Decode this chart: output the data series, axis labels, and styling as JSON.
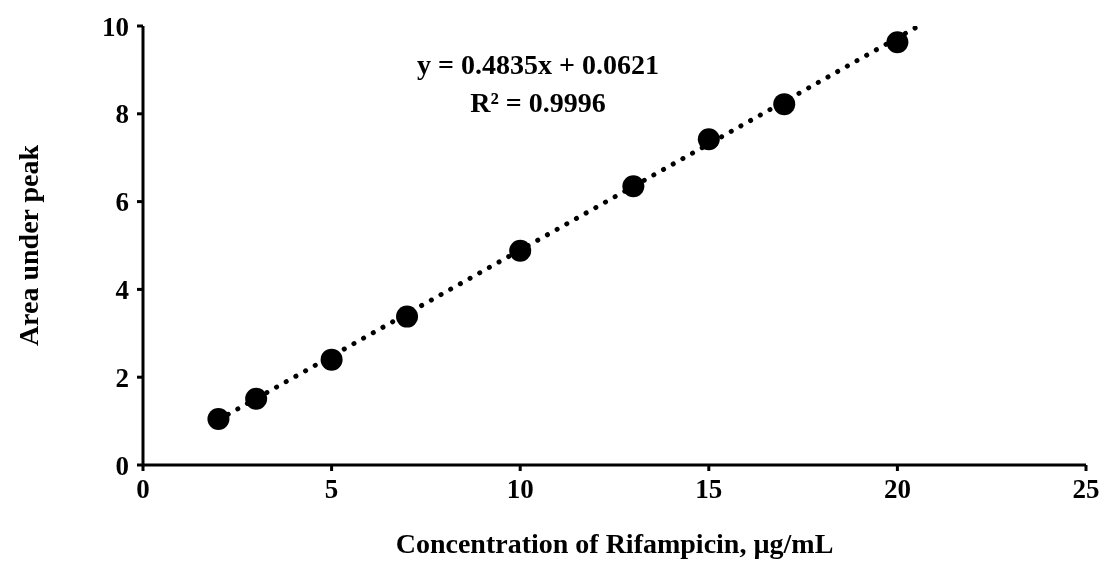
{
  "chart_data": {
    "type": "scatter",
    "xlabel": "Concentration of Rifampicin, µg/mL",
    "ylabel": "Area under peak",
    "annotations": [
      "y = 0.4835x + 0.0621",
      "R² = 0.9996"
    ],
    "xlim": [
      0,
      25
    ],
    "xticks": [
      0,
      5,
      10,
      15,
      20,
      25
    ],
    "ylim": [
      0,
      10
    ],
    "yticks": [
      0,
      2,
      4,
      6,
      8,
      10
    ],
    "grid": false,
    "legend": false,
    "marker": "circle",
    "series": [
      {
        "color": "#000000",
        "x": [
          2,
          3,
          5,
          7,
          10,
          13,
          15,
          17,
          20
        ],
        "values": [
          1.05,
          1.51,
          2.4,
          3.38,
          4.88,
          6.35,
          7.42,
          8.22,
          9.63
        ]
      },
      {
        "type": "line",
        "color": "#000000",
        "line_style": "dotted",
        "marker": "none",
        "x": [
          2,
          20.5
        ],
        "values": [
          1.03,
          9.97
        ]
      }
    ]
  }
}
